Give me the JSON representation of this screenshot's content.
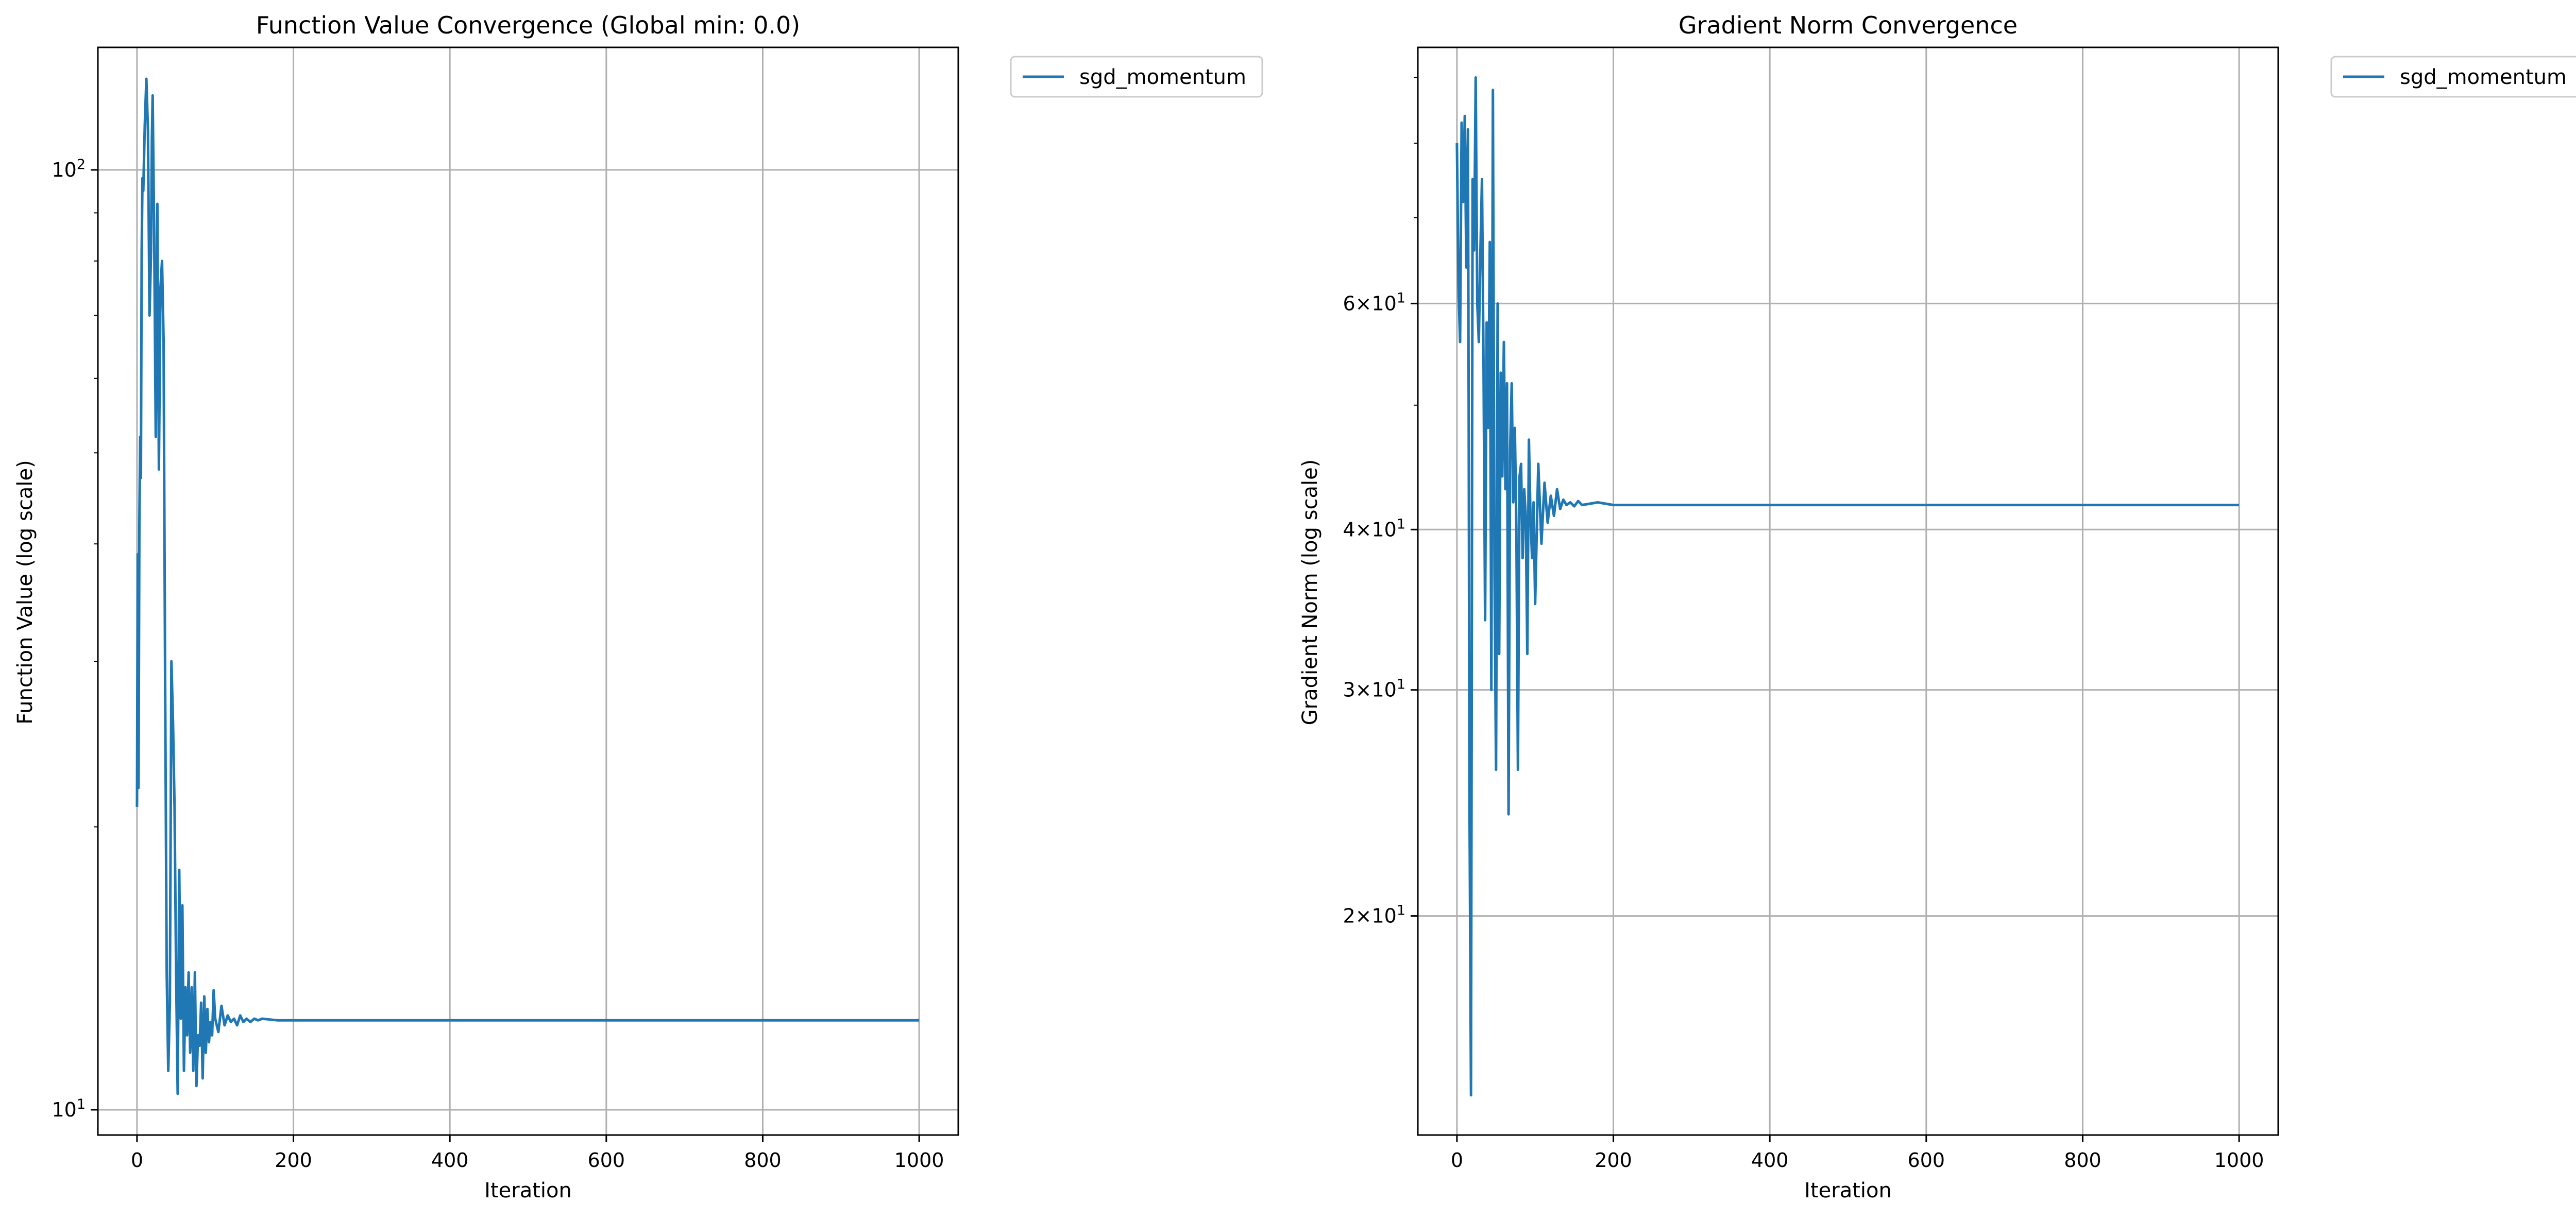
{
  "colors": {
    "series": "#1f77b4",
    "grid": "#b0b0b0",
    "axes": "#000000",
    "legend_border": "#cccccc"
  },
  "chart_data": [
    {
      "type": "line",
      "title": "Function Value Convergence (Global min: 0.0)",
      "xlabel": "Iteration",
      "ylabel": "Function Value (log scale)",
      "yscale": "log",
      "xlim": [
        -50,
        1050
      ],
      "ylim": [
        9.4,
        135
      ],
      "x_ticks": [
        0,
        200,
        400,
        600,
        800,
        1000
      ],
      "x_tick_labels": [
        "0",
        "200",
        "400",
        "600",
        "800",
        "1000"
      ],
      "y_major_ticks": [
        10,
        100
      ],
      "y_tick_labels": [
        "10^1",
        "10^2"
      ],
      "grid": true,
      "legend": {
        "position": "outside-right",
        "entries": [
          "sgd_momentum"
        ]
      },
      "series": [
        {
          "name": "sgd_momentum",
          "x": [
            0,
            1,
            2,
            3,
            4,
            5,
            6,
            7,
            8,
            10,
            12,
            14,
            16,
            18,
            19,
            20,
            22,
            24,
            26,
            28,
            30,
            32,
            34,
            36,
            38,
            40,
            42,
            44,
            46,
            48,
            50,
            52,
            54,
            56,
            58,
            60,
            62,
            64,
            66,
            68,
            70,
            72,
            74,
            76,
            78,
            80,
            82,
            84,
            86,
            88,
            90,
            92,
            94,
            96,
            98,
            100,
            104,
            108,
            112,
            116,
            120,
            124,
            128,
            132,
            136,
            140,
            145,
            150,
            155,
            160,
            180,
            200,
            1000
          ],
          "y": [
            21,
            39,
            22,
            42,
            52,
            47,
            82,
            98,
            95,
            112,
            125,
            110,
            70,
            82,
            108,
            120,
            85,
            52,
            92,
            48,
            75,
            80,
            66,
            28,
            14,
            11,
            13,
            30,
            26,
            21,
            14,
            10.4,
            18,
            12.5,
            16.5,
            11,
            13.5,
            12,
            14,
            11.5,
            13.5,
            11,
            14,
            10.6,
            12,
            11.7,
            13,
            10.8,
            13.2,
            11.5,
            12.8,
            11.8,
            12.4,
            12,
            13.4,
            12.5,
            12.1,
            12.9,
            12.3,
            12.6,
            12.4,
            12.5,
            12.3,
            12.6,
            12.4,
            12.5,
            12.4,
            12.5,
            12.45,
            12.5,
            12.45,
            12.45,
            12.45
          ]
        }
      ]
    },
    {
      "type": "line",
      "title": "Gradient Norm Convergence",
      "xlabel": "Iteration",
      "ylabel": "Gradient Norm (log scale)",
      "yscale": "log",
      "xlim": [
        -50,
        1050
      ],
      "ylim": [
        13.5,
        95
      ],
      "x_ticks": [
        0,
        200,
        400,
        600,
        800,
        1000
      ],
      "x_tick_labels": [
        "0",
        "200",
        "400",
        "600",
        "800",
        "1000"
      ],
      "y_major_ticks": [
        20,
        30,
        40,
        60
      ],
      "y_tick_labels": [
        "2×10^1",
        "3×10^1",
        "4×10^1",
        "6×10^1"
      ],
      "grid": true,
      "legend": {
        "position": "outside-right",
        "entries": [
          "sgd_momentum"
        ]
      },
      "series": [
        {
          "name": "sgd_momentum",
          "x": [
            0,
            2,
            4,
            6,
            8,
            10,
            12,
            14,
            15,
            16,
            18,
            20,
            22,
            24,
            26,
            28,
            30,
            32,
            34,
            36,
            38,
            40,
            42,
            44,
            46,
            48,
            50,
            52,
            54,
            56,
            58,
            60,
            62,
            64,
            66,
            68,
            70,
            72,
            74,
            76,
            78,
            80,
            82,
            84,
            86,
            88,
            90,
            92,
            94,
            96,
            98,
            100,
            104,
            108,
            112,
            116,
            120,
            124,
            128,
            132,
            136,
            140,
            145,
            150,
            155,
            160,
            180,
            200,
            1000
          ],
          "y": [
            80,
            62,
            56,
            83,
            72,
            84,
            64,
            82,
            50,
            25,
            14.5,
            75,
            66,
            90,
            60,
            56,
            66,
            75,
            54,
            34,
            58,
            48,
            67,
            30,
            88,
            37,
            26,
            60,
            32,
            53,
            44,
            56,
            43,
            52,
            24,
            46,
            52,
            42,
            48,
            40,
            26,
            44,
            45,
            38,
            43,
            41,
            32,
            47,
            41,
            38,
            42,
            35,
            45,
            39,
            43.5,
            40.5,
            42.5,
            41,
            43,
            41.5,
            42.2,
            41.8,
            42,
            41.7,
            42.1,
            41.8,
            42,
            41.8,
            41.8
          ]
        }
      ]
    }
  ]
}
